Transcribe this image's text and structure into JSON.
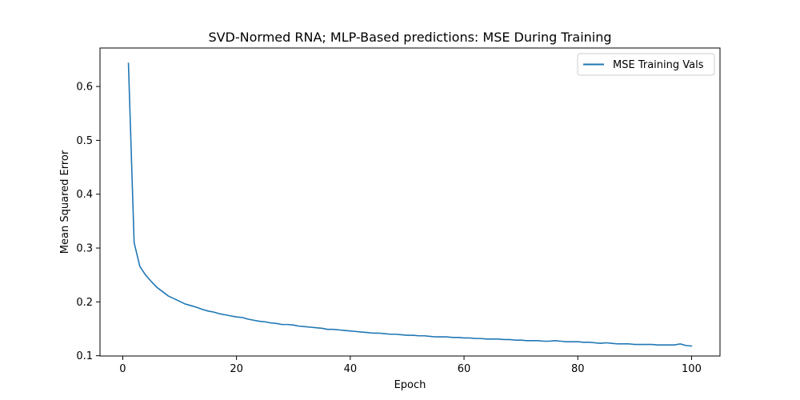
{
  "chart_data": {
    "type": "line",
    "title": "SVD-Normed RNA; MLP-Based predictions: MSE During Training",
    "xlabel": "Epoch",
    "ylabel": "Mean Squared Error",
    "xlim": [
      -4.0,
      105.0
    ],
    "ylim": [
      0.0995,
      0.6715
    ],
    "xticks": [
      0,
      20,
      40,
      60,
      80,
      100
    ],
    "yticks": [
      0.1,
      0.2,
      0.3,
      0.4,
      0.5,
      0.6
    ],
    "xtick_labels": [
      "0",
      "20",
      "40",
      "60",
      "80",
      "100"
    ],
    "ytick_labels": [
      "0.1",
      "0.2",
      "0.3",
      "0.4",
      "0.5",
      "0.6"
    ],
    "grid": false,
    "legend_position": "top-right",
    "series": [
      {
        "name": "MSE Training Vals",
        "color": "#1f77b4",
        "x": [
          1,
          2,
          3,
          4,
          5,
          6,
          7,
          8,
          9,
          10,
          11,
          12,
          13,
          14,
          15,
          16,
          17,
          18,
          19,
          20,
          21,
          22,
          23,
          24,
          25,
          26,
          27,
          28,
          29,
          30,
          31,
          32,
          33,
          34,
          35,
          36,
          37,
          38,
          39,
          40,
          41,
          42,
          43,
          44,
          45,
          46,
          47,
          48,
          49,
          50,
          51,
          52,
          53,
          54,
          55,
          56,
          57,
          58,
          59,
          60,
          61,
          62,
          63,
          64,
          65,
          66,
          67,
          68,
          69,
          70,
          71,
          72,
          73,
          74,
          75,
          76,
          77,
          78,
          79,
          80,
          81,
          82,
          83,
          84,
          85,
          86,
          87,
          88,
          89,
          90,
          91,
          92,
          93,
          94,
          95,
          96,
          97,
          98,
          99,
          100
        ],
        "values": [
          0.643,
          0.31,
          0.266,
          0.25,
          0.238,
          0.227,
          0.219,
          0.211,
          0.206,
          0.201,
          0.196,
          0.193,
          0.19,
          0.186,
          0.183,
          0.181,
          0.178,
          0.176,
          0.174,
          0.172,
          0.171,
          0.168,
          0.166,
          0.164,
          0.163,
          0.161,
          0.16,
          0.158,
          0.158,
          0.157,
          0.155,
          0.154,
          0.153,
          0.152,
          0.151,
          0.149,
          0.149,
          0.148,
          0.147,
          0.146,
          0.145,
          0.144,
          0.143,
          0.142,
          0.142,
          0.141,
          0.14,
          0.14,
          0.139,
          0.138,
          0.138,
          0.137,
          0.137,
          0.136,
          0.135,
          0.135,
          0.135,
          0.134,
          0.134,
          0.133,
          0.133,
          0.132,
          0.132,
          0.131,
          0.131,
          0.131,
          0.13,
          0.13,
          0.129,
          0.129,
          0.128,
          0.128,
          0.128,
          0.127,
          0.127,
          0.128,
          0.127,
          0.126,
          0.126,
          0.126,
          0.125,
          0.125,
          0.124,
          0.123,
          0.124,
          0.123,
          0.122,
          0.122,
          0.122,
          0.121,
          0.121,
          0.121,
          0.121,
          0.12,
          0.12,
          0.12,
          0.12,
          0.122,
          0.119,
          0.118
        ]
      }
    ]
  }
}
